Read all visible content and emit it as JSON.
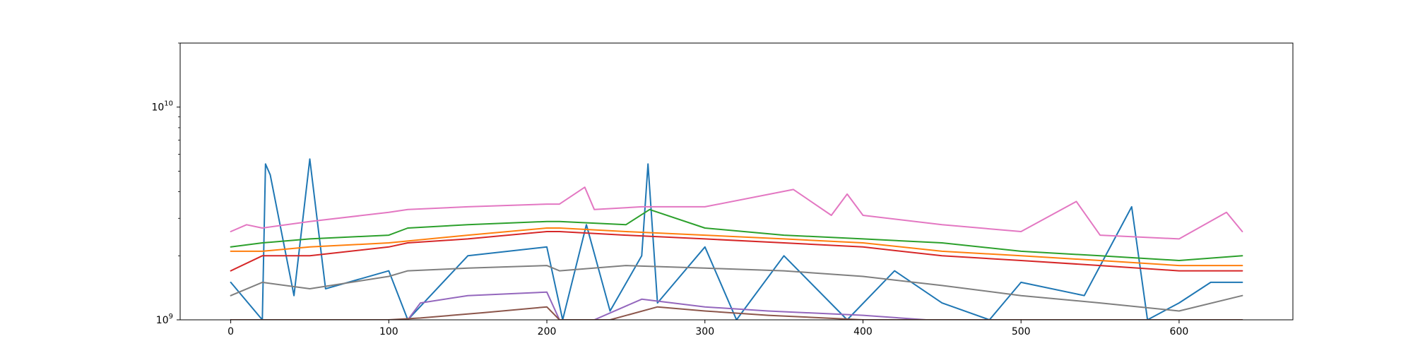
{
  "chart_data": {
    "type": "line",
    "title": "",
    "xlabel": "",
    "ylabel": "",
    "xlim": [
      -32,
      672
    ],
    "ylim": [
      1000000000,
      20000000000
    ],
    "yscale": "log",
    "grid": false,
    "legend": "none",
    "x_ticks": [
      {
        "value": 0,
        "label": "0"
      },
      {
        "value": 100,
        "label": "100"
      },
      {
        "value": 200,
        "label": "200"
      },
      {
        "value": 300,
        "label": "300"
      },
      {
        "value": 400,
        "label": "400"
      },
      {
        "value": 500,
        "label": "500"
      },
      {
        "value": 600,
        "label": "600"
      }
    ],
    "y_ticks": [
      {
        "value": 1000000000,
        "base": "10",
        "exponent": "9"
      },
      {
        "value": 10000000000,
        "base": "10",
        "exponent": "10"
      }
    ],
    "series": [
      {
        "color": "#1f77b4",
        "x": [
          0,
          20,
          22,
          25,
          40,
          50,
          60,
          100,
          112,
          150,
          200,
          210,
          225,
          240,
          260,
          264,
          270,
          300,
          320,
          350,
          390,
          420,
          450,
          480,
          500,
          540,
          570,
          580,
          600,
          620,
          640
        ],
        "values": [
          1500000000,
          1000000000,
          5400000000,
          4800000000,
          1300000000,
          5700000000,
          1400000000,
          1700000000,
          1000000000,
          2000000000,
          2200000000,
          1000000000,
          2800000000,
          1100000000,
          2000000000,
          5400000000,
          1200000000,
          2200000000,
          1000000000,
          2000000000,
          1000000000,
          1700000000,
          1200000000,
          1000000000,
          1500000000,
          1300000000,
          3400000000,
          1000000000,
          1200000000,
          1500000000,
          1500000000
        ]
      },
      {
        "color": "#ff7f0e",
        "x": [
          0,
          20,
          50,
          100,
          150,
          200,
          208,
          250,
          300,
          350,
          400,
          450,
          500,
          550,
          600,
          640
        ],
        "values": [
          2100000000,
          2100000000,
          2200000000,
          2300000000,
          2500000000,
          2700000000,
          2700000000,
          2600000000,
          2500000000,
          2400000000,
          2300000000,
          2100000000,
          2000000000,
          1900000000,
          1800000000,
          1800000000
        ]
      },
      {
        "color": "#2ca02c",
        "x": [
          0,
          20,
          50,
          100,
          112,
          150,
          200,
          208,
          250,
          265,
          300,
          350,
          400,
          450,
          500,
          550,
          600,
          640
        ],
        "values": [
          2200000000,
          2300000000,
          2400000000,
          2500000000,
          2700000000,
          2800000000,
          2900000000,
          2900000000,
          2800000000,
          3300000000,
          2700000000,
          2500000000,
          2400000000,
          2300000000,
          2100000000,
          2000000000,
          1900000000,
          2000000000
        ]
      },
      {
        "color": "#d62728",
        "x": [
          0,
          20,
          50,
          100,
          112,
          150,
          200,
          208,
          250,
          300,
          350,
          400,
          450,
          500,
          550,
          600,
          640
        ],
        "values": [
          1700000000,
          2000000000,
          2000000000,
          2200000000,
          2300000000,
          2400000000,
          2600000000,
          2600000000,
          2500000000,
          2400000000,
          2300000000,
          2200000000,
          2000000000,
          1900000000,
          1800000000,
          1700000000,
          1700000000
        ]
      },
      {
        "color": "#9467bd",
        "x": [
          0,
          40,
          60,
          100,
          112,
          120,
          150,
          200,
          208,
          230,
          260,
          300,
          340,
          400,
          440,
          480,
          520,
          560,
          600,
          640
        ],
        "values": [
          1000000000,
          1000000000,
          1000000000,
          1000000000,
          1000000000,
          1200000000,
          1300000000,
          1350000000,
          1000000000,
          1000000000,
          1250000000,
          1150000000,
          1100000000,
          1050000000,
          1000000000,
          1000000000,
          1000000000,
          1000000000,
          1000000000,
          1000000000
        ]
      },
      {
        "color": "#8c564b",
        "x": [
          0,
          40,
          100,
          120,
          160,
          200,
          208,
          240,
          270,
          300,
          340,
          400,
          450,
          500,
          600,
          640
        ],
        "values": [
          1000000000,
          1000000000,
          1000000000,
          1020000000,
          1080000000,
          1150000000,
          1000000000,
          1000000000,
          1150000000,
          1100000000,
          1050000000,
          1000000000,
          1000000000,
          1000000000,
          1000000000,
          1000000000
        ]
      },
      {
        "color": "#e377c2",
        "x": [
          0,
          10,
          20,
          50,
          100,
          112,
          150,
          200,
          208,
          224,
          230,
          260,
          300,
          356,
          380,
          390,
          400,
          450,
          500,
          535,
          550,
          600,
          630,
          640
        ],
        "values": [
          2600000000,
          2800000000,
          2700000000,
          2900000000,
          3200000000,
          3300000000,
          3400000000,
          3500000000,
          3500000000,
          4200000000,
          3300000000,
          3400000000,
          3400000000,
          4100000000,
          3100000000,
          3900000000,
          3100000000,
          2800000000,
          2600000000,
          3600000000,
          2500000000,
          2400000000,
          3200000000,
          2600000000
        ]
      },
      {
        "color": "#7f7f7f",
        "x": [
          0,
          20,
          50,
          100,
          112,
          150,
          200,
          208,
          250,
          300,
          350,
          400,
          450,
          500,
          550,
          600,
          640
        ],
        "values": [
          1300000000,
          1500000000,
          1400000000,
          1600000000,
          1700000000,
          1750000000,
          1800000000,
          1700000000,
          1800000000,
          1750000000,
          1700000000,
          1600000000,
          1450000000,
          1300000000,
          1200000000,
          1100000000,
          1300000000
        ]
      }
    ]
  }
}
